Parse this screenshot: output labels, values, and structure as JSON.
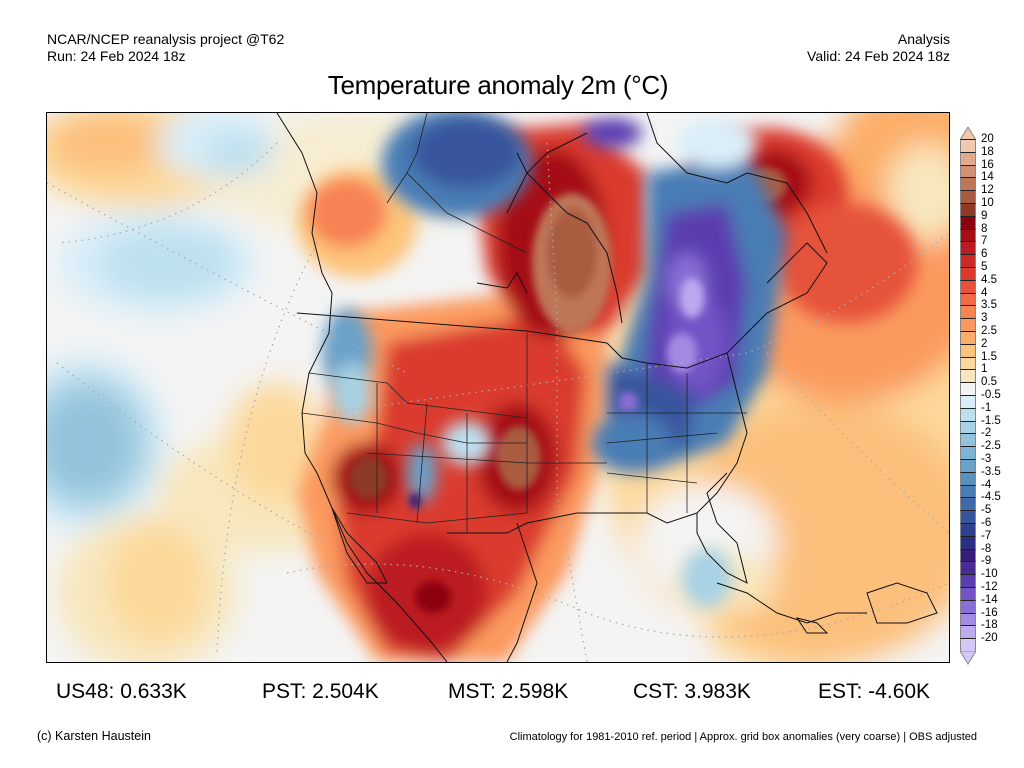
{
  "header": {
    "source": "NCAR/NCEP reanalysis project @T62",
    "run": "Run: 24 Feb 2024 18z",
    "type": "Analysis",
    "valid": "Valid: 24 Feb 2024 18z",
    "title": "Temperature anomaly 2m (°C)"
  },
  "colorbar": {
    "levels": [
      {
        "label": "20",
        "color": "#f0c8b0"
      },
      {
        "label": "18",
        "color": "#e2a98c"
      },
      {
        "label": "16",
        "color": "#d29073"
      },
      {
        "label": "14",
        "color": "#bf7658"
      },
      {
        "label": "12",
        "color": "#a95b41"
      },
      {
        "label": "10",
        "color": "#8e3a26"
      },
      {
        "label": "9",
        "color": "#8c0010"
      },
      {
        "label": "8",
        "color": "#a50f15"
      },
      {
        "label": "7",
        "color": "#bb1b20"
      },
      {
        "label": "6",
        "color": "#cc2a26"
      },
      {
        "label": "5",
        "color": "#da3b2d"
      },
      {
        "label": "4.5",
        "color": "#e6523a"
      },
      {
        "label": "4",
        "color": "#f06a45"
      },
      {
        "label": "3.5",
        "color": "#f78252"
      },
      {
        "label": "3",
        "color": "#fb9a5e"
      },
      {
        "label": "2.5",
        "color": "#fcae69"
      },
      {
        "label": "2",
        "color": "#fdc47c"
      },
      {
        "label": "1.5",
        "color": "#fdd89a"
      },
      {
        "label": "1",
        "color": "#f8e7bd"
      },
      {
        "label": "0.5",
        "color": "#f4f4f4"
      },
      {
        "label": "-0.5",
        "color": "#d9eef9"
      },
      {
        "label": "-1",
        "color": "#bde0ef"
      },
      {
        "label": "-1.5",
        "color": "#a7d2e5"
      },
      {
        "label": "-2",
        "color": "#93c3dc"
      },
      {
        "label": "-2.5",
        "color": "#7fb3d3"
      },
      {
        "label": "-3",
        "color": "#6aa1c9"
      },
      {
        "label": "-3.5",
        "color": "#578fbf"
      },
      {
        "label": "-4",
        "color": "#4a7db5"
      },
      {
        "label": "-4.5",
        "color": "#3f69a9"
      },
      {
        "label": "-5",
        "color": "#37559d"
      },
      {
        "label": "-6",
        "color": "#2f4290"
      },
      {
        "label": "-7",
        "color": "#2a2f85"
      },
      {
        "label": "-8",
        "color": "#351c7a"
      },
      {
        "label": "-9",
        "color": "#4a2a96"
      },
      {
        "label": "-10",
        "color": "#5c3db0"
      },
      {
        "label": "-12",
        "color": "#7353c6"
      },
      {
        "label": "-14",
        "color": "#8a6dd6"
      },
      {
        "label": "-16",
        "color": "#a48ae2"
      },
      {
        "label": "-18",
        "color": "#bda9ee"
      },
      {
        "label": "-20",
        "color": "#d3c8f6"
      }
    ]
  },
  "stats": {
    "us48": "US48: 0.633K",
    "pst": "PST: 2.504K",
    "mst": "MST: 2.598K",
    "cst": "CST: 3.983K",
    "est": "EST: -4.60K"
  },
  "footer": {
    "credit": "(c) Karsten Haustein",
    "note": "Climatology for 1981-2010 ref. period | Approx. grid box anomalies (very coarse) | OBS adjusted"
  },
  "map": {
    "variable": "2m temperature anomaly",
    "units": "°C",
    "region": "North America"
  }
}
